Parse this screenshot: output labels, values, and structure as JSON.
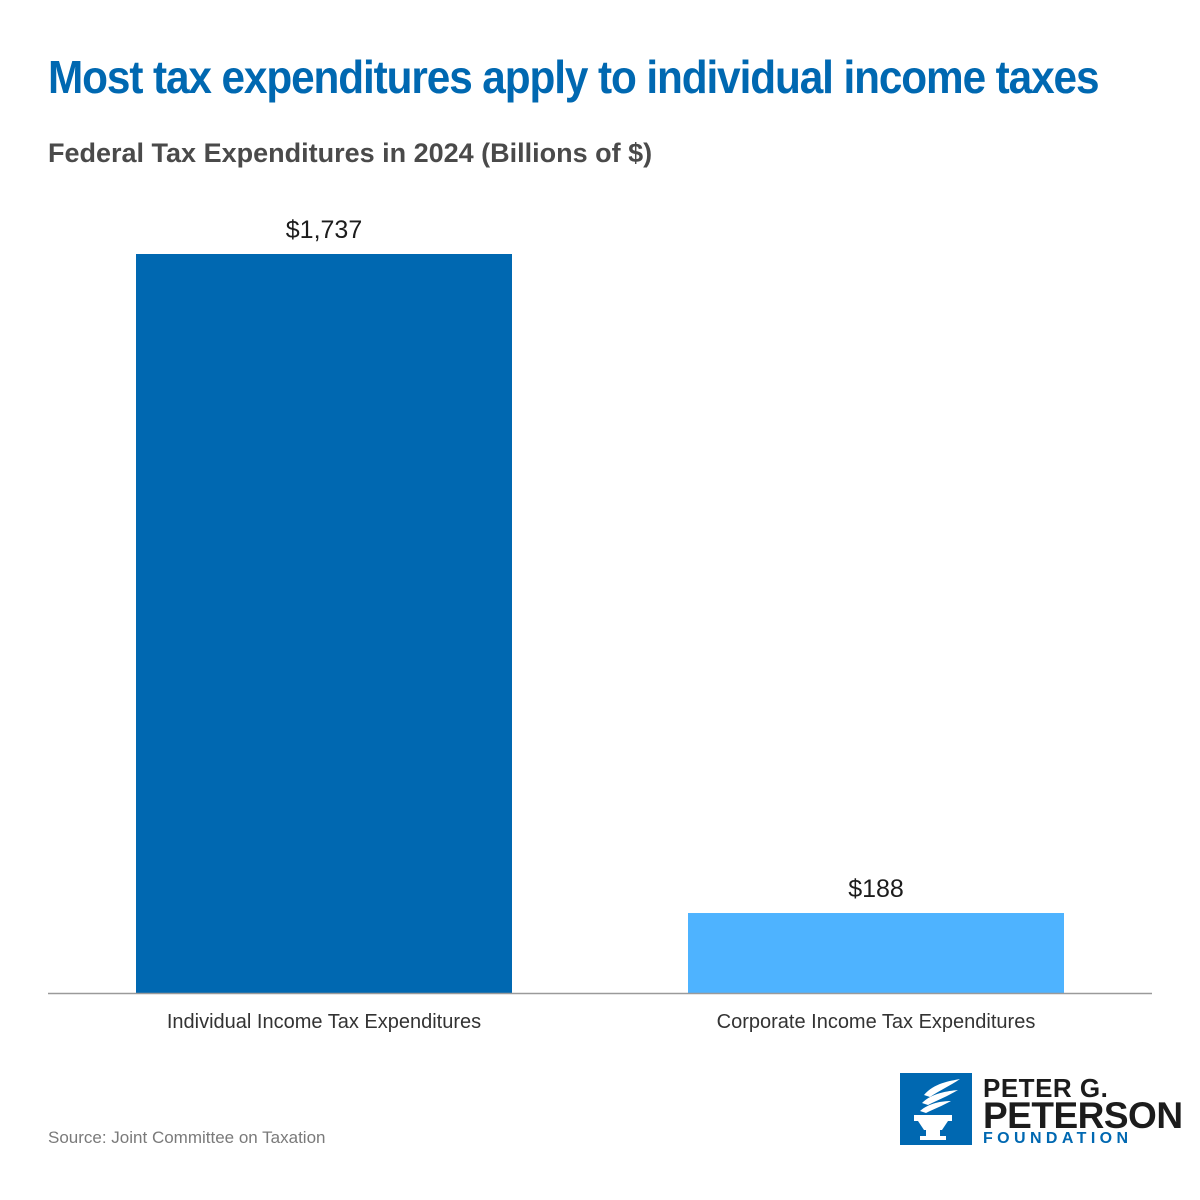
{
  "chart_data": {
    "type": "bar",
    "title": "Most tax expenditures apply to individual income taxes",
    "subtitle": "Federal Tax Expenditures in 2024 (Billions of $)",
    "categories": [
      "Individual Income Tax Expenditures",
      "Corporate Income Tax Expenditures"
    ],
    "values": [
      1737,
      188
    ],
    "value_labels": [
      "$1,737",
      "$188"
    ],
    "colors": [
      "#0068b1",
      "#4eb3ff"
    ],
    "xlabel": "",
    "ylabel": "",
    "ylim": [
      0,
      1737
    ],
    "grid": false,
    "legend": "none"
  },
  "source": "Source: Joint Committee on Taxation",
  "logo": {
    "line1": "PETER G.",
    "line2": "PETERSON",
    "line3": "FOUNDATION",
    "icon": "torch-icon",
    "color": "#0068b1"
  }
}
